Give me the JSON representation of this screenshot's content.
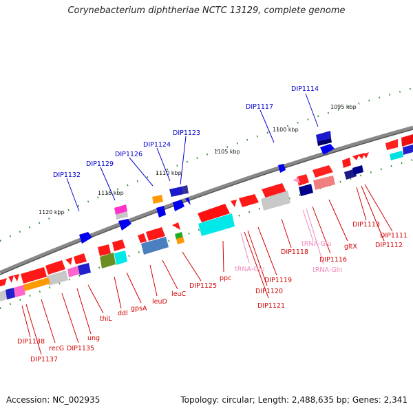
{
  "title": "Corynebacterium diphtheriae NCTC 13129, complete genome",
  "footer": {
    "accession": "Accession: NC_002935",
    "summary": "Topology: circular; Length: 2,488,635 bp; Genes: 2,341"
  },
  "colors": {
    "backbone": "#7d7d7d",
    "forward_gene": "#ff0000",
    "label_blue": "#0000cc",
    "label_red": "#d40000",
    "label_pink": "#ee88bb",
    "tick_dot": "#2a8a2a"
  },
  "scale_labels": [
    "1095 kbp",
    "1100 kbp",
    "1105 kbp",
    "1110 kbp",
    "1115 kbp",
    "1120 kbp"
  ],
  "gene_labels": [
    {
      "text": "DIP1114",
      "color": "blue"
    },
    {
      "text": "DIP1117",
      "color": "blue"
    },
    {
      "text": "DIP1123",
      "color": "blue"
    },
    {
      "text": "DIP1124",
      "color": "blue"
    },
    {
      "text": "DIP1126",
      "color": "blue"
    },
    {
      "text": "DIP1129",
      "color": "blue"
    },
    {
      "text": "DIP1132",
      "color": "blue"
    },
    {
      "text": "DIP1113",
      "color": "red"
    },
    {
      "text": "DIP1111",
      "color": "red"
    },
    {
      "text": "DIP1112",
      "color": "red"
    },
    {
      "text": "gltX",
      "color": "red"
    },
    {
      "text": "tRNA-Glu",
      "color": "pink"
    },
    {
      "text": "DIP1116",
      "color": "red"
    },
    {
      "text": "tRNA-Gln",
      "color": "pink"
    },
    {
      "text": "DIP1118",
      "color": "red"
    },
    {
      "text": "tRNA-Glu",
      "color": "pink"
    },
    {
      "text": "DIP1119",
      "color": "red"
    },
    {
      "text": "DIP1120",
      "color": "red"
    },
    {
      "text": "DIP1121",
      "color": "red"
    },
    {
      "text": "ppc",
      "color": "red"
    },
    {
      "text": "DIP1125",
      "color": "red"
    },
    {
      "text": "leuC",
      "color": "red"
    },
    {
      "text": "leuD",
      "color": "red"
    },
    {
      "text": "gpsA",
      "color": "red"
    },
    {
      "text": "ddl",
      "color": "red"
    },
    {
      "text": "thiL",
      "color": "red"
    },
    {
      "text": "ung",
      "color": "red"
    },
    {
      "text": "DIP1135",
      "color": "red"
    },
    {
      "text": "recG",
      "color": "red"
    },
    {
      "text": "DIP1138",
      "color": "red"
    },
    {
      "text": "DIP1137",
      "color": "red"
    }
  ]
}
